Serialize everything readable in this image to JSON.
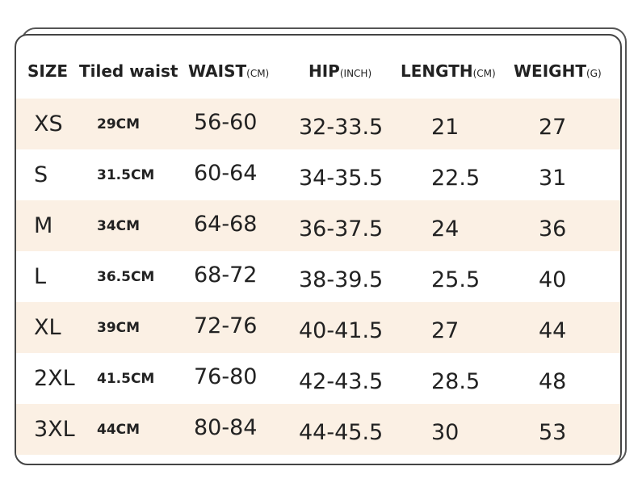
{
  "table": {
    "header": [
      {
        "label": "SIZE"
      },
      {
        "label": "Tiled waist"
      },
      {
        "label": "WAIST",
        "unit": "(CM)"
      },
      {
        "label": "HIP",
        "unit": "(INCH)"
      },
      {
        "label": "LENGTH",
        "unit": "(CM)"
      },
      {
        "label": "WEIGHT",
        "unit": "(G)"
      }
    ],
    "rows": [
      [
        "XS",
        "29CM",
        "56-60",
        "32-33.5",
        "21",
        "27"
      ],
      [
        "S",
        "31.5CM",
        "60-64",
        "34-35.5",
        "22.5",
        "31"
      ],
      [
        "M",
        "34CM",
        "64-68",
        "36-37.5",
        "24",
        "36"
      ],
      [
        "L",
        "36.5CM",
        "68-72",
        "38-39.5",
        "25.5",
        "40"
      ],
      [
        "XL",
        "39CM",
        "72-76",
        "40-41.5",
        "27",
        "44"
      ],
      [
        "2XL",
        "41.5CM",
        "76-80",
        "42-43.5",
        "28.5",
        "48"
      ],
      [
        "3XL",
        "44CM",
        "80-84",
        "44-45.5",
        "30",
        "53"
      ]
    ]
  }
}
